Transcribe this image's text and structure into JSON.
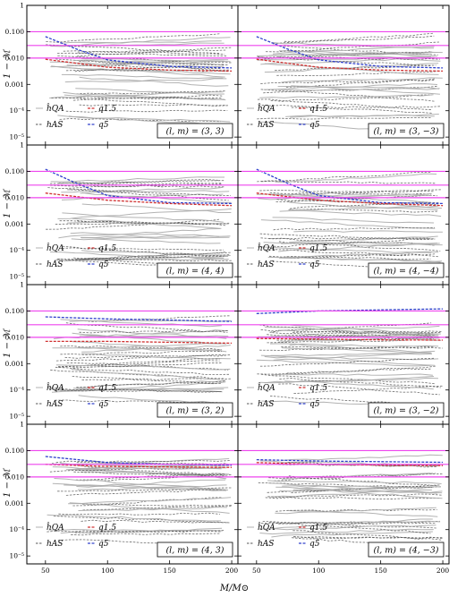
{
  "chart_data": {
    "type": "line",
    "xlabel": "M/M⊙",
    "ylabel": "1 − ℳ",
    "xlim": [
      35,
      205
    ],
    "ylim": [
      5e-06,
      1
    ],
    "yscale": "log",
    "x_ticks": [
      "50",
      "100",
      "150",
      "200"
    ],
    "y_ticks": [
      "1",
      "0.100",
      "0.010",
      "0.001",
      "10⁻⁴",
      "10⁻⁵"
    ],
    "y_tick_values": [
      1,
      0.1,
      0.01,
      0.001,
      0.0001,
      1e-05
    ],
    "reference_lines": [
      0.1,
      0.03,
      0.01
    ],
    "colors": {
      "reference": "#ee44ee",
      "hqa": "#aaaaaa",
      "has": "#555555",
      "q15": "#d03030",
      "q5": "#3040cc"
    },
    "legend_labels": {
      "hqa": "ĥQA",
      "has": "hAS",
      "q15": "q1.5",
      "q5": "q5"
    },
    "panels": [
      {
        "mode_label": "(l, m) = (3, 3)",
        "series": [
          {
            "type": "q5",
            "x": [
              50,
              75,
              100,
              150,
              200
            ],
            "y": [
              0.065,
              0.022,
              0.0085,
              0.0048,
              0.0042
            ]
          },
          {
            "type": "q15",
            "x": [
              50,
              100,
              150,
              200
            ],
            "y": [
              0.009,
              0.0045,
              0.0035,
              0.0032
            ]
          }
        ]
      },
      {
        "mode_label": "(l, m) = (3, −3)",
        "series": [
          {
            "type": "q5",
            "x": [
              50,
              75,
              100,
              150,
              200
            ],
            "y": [
              0.065,
              0.022,
              0.0085,
              0.0048,
              0.0042
            ]
          },
          {
            "type": "q15",
            "x": [
              50,
              100,
              150,
              200
            ],
            "y": [
              0.009,
              0.0045,
              0.0035,
              0.0032
            ]
          }
        ]
      },
      {
        "mode_label": "(l, m) = (4, 4)",
        "series": [
          {
            "type": "q5",
            "x": [
              50,
              75,
              100,
              150,
              200
            ],
            "y": [
              0.12,
              0.035,
              0.012,
              0.0065,
              0.006
            ]
          },
          {
            "type": "q15",
            "x": [
              50,
              100,
              150,
              200
            ],
            "y": [
              0.015,
              0.008,
              0.006,
              0.005
            ]
          }
        ]
      },
      {
        "mode_label": "(l, m) = (4, −4)",
        "series": [
          {
            "type": "q5",
            "x": [
              50,
              75,
              100,
              150,
              200
            ],
            "y": [
              0.12,
              0.035,
              0.012,
              0.0065,
              0.006
            ]
          },
          {
            "type": "q15",
            "x": [
              50,
              100,
              150,
              200
            ],
            "y": [
              0.015,
              0.008,
              0.006,
              0.005
            ]
          }
        ]
      },
      {
        "mode_label": "(l, m) = (3, 2)",
        "series": [
          {
            "type": "q5",
            "x": [
              50,
              100,
              150,
              200
            ],
            "y": [
              0.06,
              0.05,
              0.045,
              0.04
            ]
          },
          {
            "type": "q15",
            "x": [
              50,
              100,
              150,
              200
            ],
            "y": [
              0.007,
              0.007,
              0.0065,
              0.006
            ]
          }
        ]
      },
      {
        "mode_label": "(l, m) = (3, −2)",
        "series": [
          {
            "type": "q5",
            "x": [
              50,
              100,
              150,
              200
            ],
            "y": [
              0.08,
              0.1,
              0.11,
              0.12
            ]
          },
          {
            "type": "q15",
            "x": [
              50,
              100,
              150,
              200
            ],
            "y": [
              0.009,
              0.0085,
              0.008,
              0.0078
            ]
          }
        ]
      },
      {
        "mode_label": "(l, m) = (4, 3)",
        "series": [
          {
            "type": "q5",
            "x": [
              50,
              100,
              150,
              200
            ],
            "y": [
              0.06,
              0.035,
              0.03,
              0.028
            ]
          },
          {
            "type": "q15",
            "x": [
              50,
              100,
              150,
              200
            ],
            "y": [
              0.03,
              0.025,
              0.024,
              0.023
            ]
          }
        ]
      },
      {
        "mode_label": "(l, m) = (4, −3)",
        "series": [
          {
            "type": "q5",
            "x": [
              50,
              100,
              150,
              200
            ],
            "y": [
              0.045,
              0.04,
              0.038,
              0.036
            ]
          },
          {
            "type": "q15",
            "x": [
              50,
              100,
              150,
              200
            ],
            "y": [
              0.035,
              0.03,
              0.028,
              0.027
            ]
          }
        ]
      }
    ]
  }
}
